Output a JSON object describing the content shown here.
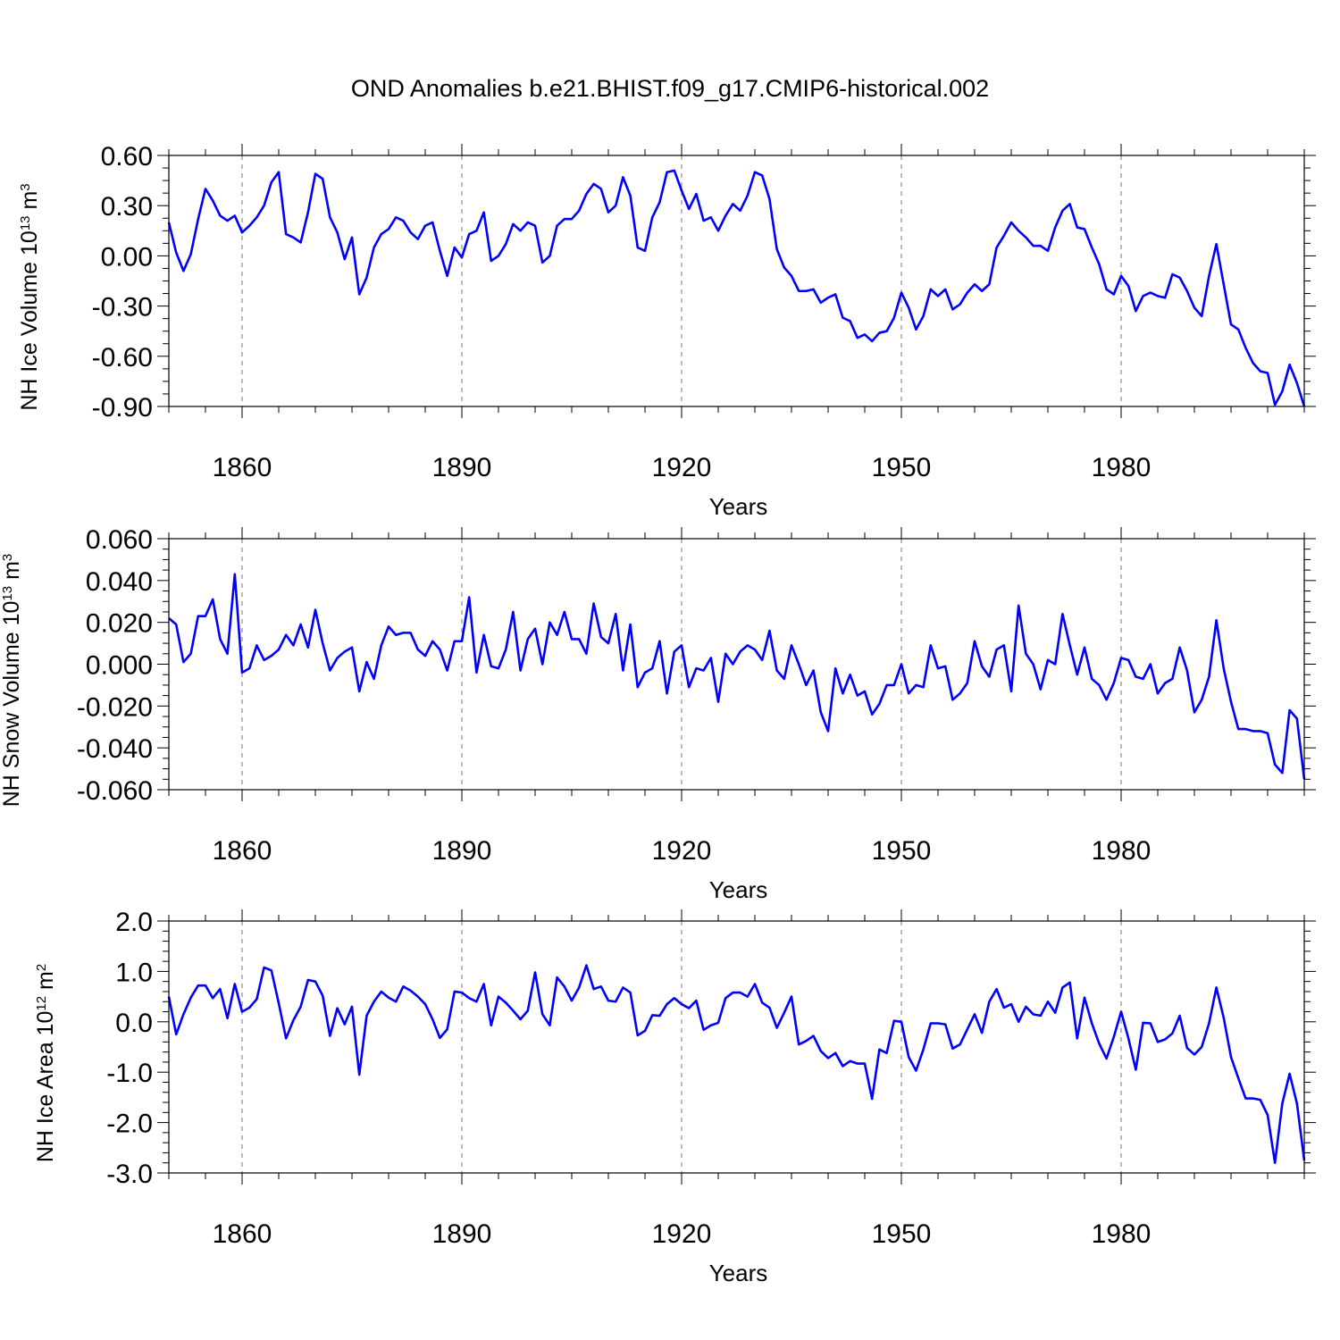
{
  "title": "OND Anomalies b.e21.BHIST.f09_g17.CMIP6-historical.002",
  "colors": {
    "series": "#0000ff",
    "axis": "#000000",
    "grid": "#777777"
  },
  "chart_data": [
    {
      "type": "line",
      "ylabel_main": "NH Ice Volume 10",
      "ylabel_sup": "13",
      "ylabel_unit": " m",
      "ylabel_unit_sup": "3",
      "xlabel": "Years",
      "xlim": [
        1850,
        2005
      ],
      "ylim": [
        -0.9,
        0.6
      ],
      "yticks": [
        -0.9,
        -0.6,
        -0.3,
        0.0,
        0.3,
        0.6
      ],
      "ytick_labels": [
        "-0.90",
        "-0.60",
        "-0.30",
        "0.00",
        "0.30",
        "0.60"
      ],
      "yminor_step": 0.075,
      "xticks": [
        1860,
        1890,
        1920,
        1950,
        1980
      ],
      "xtick_labels": [
        "1860",
        "1890",
        "1920",
        "1950",
        "1980"
      ],
      "x_start": 1850,
      "values": [
        0.2,
        0.02,
        -0.09,
        0.01,
        0.22,
        0.4,
        0.33,
        0.24,
        0.21,
        0.24,
        0.14,
        0.18,
        0.23,
        0.3,
        0.44,
        0.5,
        0.13,
        0.11,
        0.08,
        0.26,
        0.49,
        0.46,
        0.23,
        0.14,
        -0.02,
        0.11,
        -0.23,
        -0.13,
        0.05,
        0.13,
        0.16,
        0.23,
        0.21,
        0.14,
        0.1,
        0.18,
        0.2,
        0.03,
        -0.12,
        0.05,
        -0.01,
        0.13,
        0.15,
        0.26,
        -0.03,
        0.0,
        0.07,
        0.19,
        0.15,
        0.2,
        0.18,
        -0.04,
        0.0,
        0.18,
        0.22,
        0.22,
        0.27,
        0.37,
        0.43,
        0.4,
        0.26,
        0.3,
        0.47,
        0.36,
        0.05,
        0.03,
        0.23,
        0.32,
        0.5,
        0.51,
        0.39,
        0.28,
        0.37,
        0.21,
        0.23,
        0.15,
        0.24,
        0.31,
        0.27,
        0.36,
        0.5,
        0.48,
        0.34,
        0.04,
        -0.07,
        -0.12,
        -0.21,
        -0.21,
        -0.2,
        -0.28,
        -0.25,
        -0.23,
        -0.37,
        -0.39,
        -0.49,
        -0.47,
        -0.51,
        -0.46,
        -0.45,
        -0.37,
        -0.22,
        -0.31,
        -0.44,
        -0.36,
        -0.2,
        -0.24,
        -0.2,
        -0.32,
        -0.29,
        -0.22,
        -0.17,
        -0.21,
        -0.17,
        0.05,
        0.12,
        0.2,
        0.15,
        0.11,
        0.06,
        0.06,
        0.03,
        0.17,
        0.27,
        0.31,
        0.17,
        0.16,
        0.05,
        -0.05,
        -0.2,
        -0.23,
        -0.12,
        -0.18,
        -0.33,
        -0.24,
        -0.22,
        -0.24,
        -0.25,
        -0.11,
        -0.13,
        -0.21,
        -0.31,
        -0.36,
        -0.12,
        0.07,
        -0.17,
        -0.41,
        -0.44,
        -0.55,
        -0.64,
        -0.69,
        -0.7,
        -0.89,
        -0.81,
        -0.65,
        -0.76,
        -0.9
      ]
    },
    {
      "type": "line",
      "ylabel_main": "NH Snow Volume 10",
      "ylabel_sup": "13",
      "ylabel_unit": " m",
      "ylabel_unit_sup": "3",
      "xlabel": "Years",
      "xlim": [
        1850,
        2005
      ],
      "ylim": [
        -0.06,
        0.06
      ],
      "yticks": [
        -0.06,
        -0.04,
        -0.02,
        0.0,
        0.02,
        0.04,
        0.06
      ],
      "ytick_labels": [
        "-0.060",
        "-0.040",
        "-0.020",
        "0.000",
        "0.020",
        "0.040",
        "0.060"
      ],
      "yminor_step": 0.005,
      "xticks": [
        1860,
        1890,
        1920,
        1950,
        1980
      ],
      "xtick_labels": [
        "1860",
        "1890",
        "1920",
        "1950",
        "1980"
      ],
      "x_start": 1850,
      "values": [
        0.022,
        0.019,
        0.001,
        0.005,
        0.023,
        0.023,
        0.031,
        0.012,
        0.005,
        0.043,
        -0.004,
        -0.002,
        0.009,
        0.002,
        0.004,
        0.007,
        0.014,
        0.009,
        0.019,
        0.008,
        0.026,
        0.01,
        -0.003,
        0.003,
        0.006,
        0.008,
        -0.013,
        0.001,
        -0.007,
        0.009,
        0.018,
        0.014,
        0.015,
        0.015,
        0.007,
        0.004,
        0.011,
        0.007,
        -0.003,
        0.011,
        0.011,
        0.032,
        -0.004,
        0.014,
        -0.001,
        -0.002,
        0.007,
        0.025,
        -0.003,
        0.012,
        0.017,
        0.0,
        0.02,
        0.014,
        0.025,
        0.012,
        0.012,
        0.005,
        0.029,
        0.013,
        0.01,
        0.024,
        -0.003,
        0.019,
        -0.011,
        -0.004,
        -0.002,
        0.011,
        -0.014,
        0.006,
        0.009,
        -0.011,
        -0.002,
        -0.003,
        0.003,
        -0.018,
        0.005,
        0.0,
        0.006,
        0.009,
        0.007,
        0.002,
        0.016,
        -0.003,
        -0.007,
        0.009,
        0.0,
        -0.01,
        -0.003,
        -0.023,
        -0.032,
        -0.002,
        -0.014,
        -0.005,
        -0.015,
        -0.013,
        -0.024,
        -0.019,
        -0.01,
        -0.01,
        0.0,
        -0.014,
        -0.01,
        -0.011,
        0.009,
        -0.002,
        -0.001,
        -0.017,
        -0.014,
        -0.009,
        0.011,
        -0.001,
        -0.006,
        0.007,
        0.009,
        -0.013,
        0.028,
        0.005,
        0.0,
        -0.012,
        0.002,
        0.0,
        0.024,
        0.009,
        -0.005,
        0.008,
        -0.007,
        -0.01,
        -0.017,
        -0.009,
        0.003,
        0.002,
        -0.006,
        -0.007,
        0.0,
        -0.014,
        -0.009,
        -0.007,
        0.008,
        -0.003,
        -0.023,
        -0.017,
        -0.006,
        0.021,
        -0.002,
        -0.018,
        -0.031,
        -0.031,
        -0.032,
        -0.032,
        -0.033,
        -0.048,
        -0.052,
        -0.022,
        -0.026,
        -0.055
      ]
    },
    {
      "type": "line",
      "ylabel_main": "NH Ice Area 10",
      "ylabel_sup": "12",
      "ylabel_unit": " m",
      "ylabel_unit_sup": "2",
      "xlabel": "Years",
      "xlim": [
        1850,
        2005
      ],
      "ylim": [
        -3.0,
        2.0
      ],
      "yticks": [
        -3.0,
        -2.0,
        -1.0,
        0.0,
        1.0,
        2.0
      ],
      "ytick_labels": [
        "-3.0",
        "-2.0",
        "-1.0",
        "0.0",
        "1.0",
        "2.0"
      ],
      "yminor_step": 0.2,
      "xticks": [
        1860,
        1890,
        1920,
        1950,
        1980
      ],
      "xtick_labels": [
        "1860",
        "1890",
        "1920",
        "1950",
        "1980"
      ],
      "x_start": 1850,
      "values": [
        0.5,
        -0.25,
        0.15,
        0.48,
        0.72,
        0.72,
        0.47,
        0.65,
        0.07,
        0.75,
        0.2,
        0.28,
        0.45,
        1.08,
        1.02,
        0.37,
        -0.33,
        0.03,
        0.3,
        0.83,
        0.8,
        0.52,
        -0.28,
        0.27,
        -0.05,
        0.3,
        -1.05,
        0.12,
        0.4,
        0.6,
        0.48,
        0.4,
        0.7,
        0.62,
        0.5,
        0.35,
        0.05,
        -0.32,
        -0.15,
        0.6,
        0.58,
        0.47,
        0.4,
        0.75,
        -0.07,
        0.5,
        0.38,
        0.22,
        0.05,
        0.22,
        0.98,
        0.15,
        -0.07,
        0.88,
        0.7,
        0.42,
        0.68,
        1.12,
        0.65,
        0.7,
        0.42,
        0.4,
        0.68,
        0.58,
        -0.27,
        -0.18,
        0.13,
        0.12,
        0.35,
        0.47,
        0.35,
        0.27,
        0.42,
        -0.16,
        -0.07,
        -0.02,
        0.47,
        0.58,
        0.58,
        0.5,
        0.75,
        0.38,
        0.28,
        -0.12,
        0.18,
        0.5,
        -0.45,
        -0.38,
        -0.28,
        -0.58,
        -0.72,
        -0.62,
        -0.88,
        -0.78,
        -0.83,
        -0.83,
        -1.53,
        -0.55,
        -0.62,
        0.02,
        0.0,
        -0.7,
        -0.97,
        -0.55,
        -0.03,
        -0.03,
        -0.05,
        -0.53,
        -0.45,
        -0.15,
        0.15,
        -0.22,
        0.4,
        0.65,
        0.28,
        0.35,
        0.0,
        0.3,
        0.15,
        0.12,
        0.4,
        0.18,
        0.68,
        0.78,
        -0.33,
        0.48,
        -0.03,
        -0.43,
        -0.73,
        -0.3,
        0.2,
        -0.33,
        -0.95,
        -0.02,
        -0.03,
        -0.4,
        -0.35,
        -0.23,
        0.12,
        -0.52,
        -0.65,
        -0.5,
        -0.03,
        0.68,
        0.08,
        -0.7,
        -1.12,
        -1.52,
        -1.52,
        -1.55,
        -1.85,
        -2.8,
        -1.62,
        -1.03,
        -1.62,
        -2.75
      ]
    }
  ]
}
